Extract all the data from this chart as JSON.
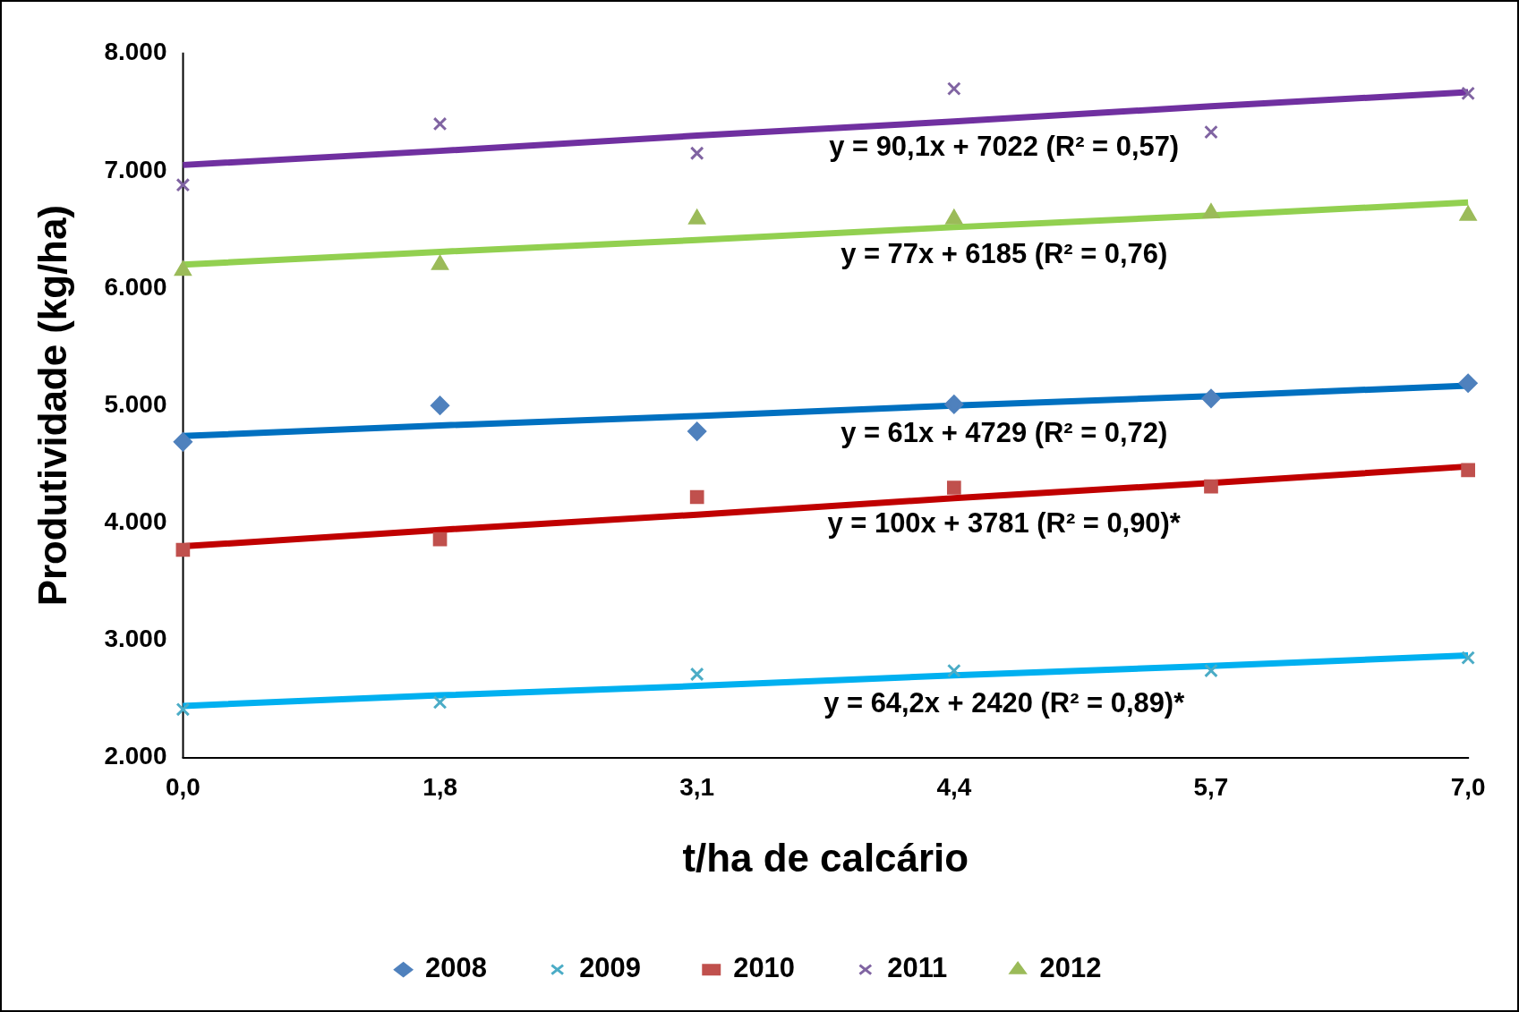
{
  "chart_data": {
    "type": "scatter",
    "xlabel": "t/ha de calcário",
    "ylabel": "Produtividade (kg/ha)",
    "categories": [
      "0,0",
      "1,8",
      "3,1",
      "4,4",
      "5,7",
      "7,0"
    ],
    "ylim": [
      2000,
      8000
    ],
    "yticks": [
      {
        "value": 2000,
        "label": "2.000"
      },
      {
        "value": 3000,
        "label": "3.000"
      },
      {
        "value": 4000,
        "label": "4.000"
      },
      {
        "value": 5000,
        "label": "5.000"
      },
      {
        "value": 6000,
        "label": "6.000"
      },
      {
        "value": 7000,
        "label": "7.000"
      },
      {
        "value": 8000,
        "label": "8.000"
      }
    ],
    "grid": false,
    "legend": "bottom",
    "series": [
      {
        "name": "2008",
        "marker": "diamond",
        "color": "#4f81bd",
        "values": [
          4690,
          5000,
          4780,
          5010,
          5060,
          5190
        ]
      },
      {
        "name": "2009",
        "marker": "cross",
        "color": "#4bacc6",
        "values": [
          2410,
          2470,
          2710,
          2740,
          2740,
          2850
        ]
      },
      {
        "name": "2010",
        "marker": "square",
        "color": "#c0504d",
        "values": [
          3770,
          3860,
          4220,
          4300,
          4310,
          4450
        ]
      },
      {
        "name": "2011",
        "marker": "cross",
        "color": "#8064a2",
        "values": [
          6880,
          7400,
          7150,
          7700,
          7330,
          7660
        ]
      },
      {
        "name": "2012",
        "marker": "triangle",
        "color": "#9bbb59",
        "values": [
          6150,
          6200,
          6590,
          6590,
          6640,
          6620
        ]
      },
      {
        "type": "line",
        "marker": "none",
        "color": "#7030a0",
        "values": [
          7050,
          7170,
          7300,
          7420,
          7550,
          7670
        ]
      },
      {
        "type": "line",
        "marker": "none",
        "color": "#92d050",
        "values": [
          6200,
          6310,
          6410,
          6520,
          6620,
          6730
        ]
      },
      {
        "type": "line",
        "marker": "none",
        "color": "#0070c0",
        "values": [
          4740,
          4830,
          4910,
          5000,
          5080,
          5170
        ]
      },
      {
        "type": "line",
        "marker": "none",
        "color": "#c00000",
        "values": [
          3800,
          3940,
          4070,
          4210,
          4340,
          4480
        ]
      },
      {
        "type": "line",
        "marker": "none",
        "color": "#00b0f0",
        "values": [
          2440,
          2530,
          2610,
          2700,
          2780,
          2870
        ]
      }
    ],
    "annotations": [
      "y = 90,1x + 7022 (R² = 0,57)",
      "y = 77x + 6185 (R² = 0,76)",
      "y = 61x + 4729 (R² = 0,72)",
      "y = 100x + 3781 (R² = 0,90)*",
      "y = 64,2x + 2420 (R² = 0,89)*"
    ]
  }
}
